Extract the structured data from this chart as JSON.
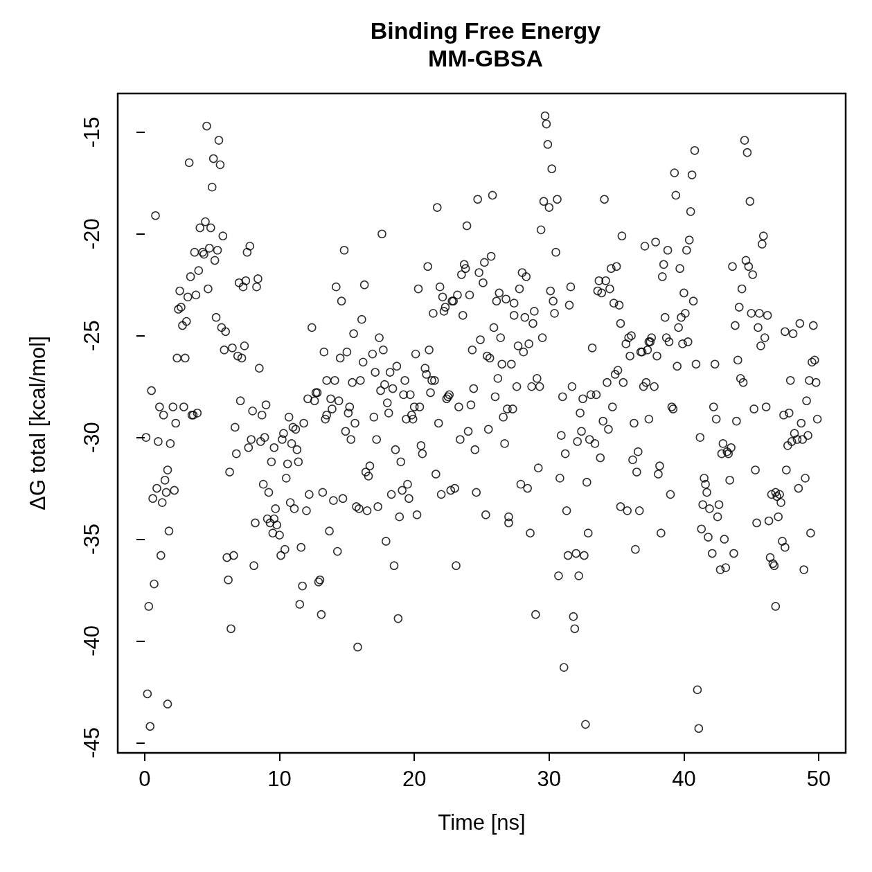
{
  "chart_data": {
    "type": "scatter",
    "title": "Binding Free Energy",
    "subtitle": "MM-GBSA",
    "xlabel": "Time [ns]",
    "ylabel": "ΔG total [kcal/mol]",
    "xlim": [
      -2,
      52
    ],
    "xticks": [
      0,
      10,
      20,
      30,
      40,
      50
    ],
    "ylim": [
      -45.5,
      -13.1
    ],
    "yticks": [
      -45,
      -40,
      -35,
      -30,
      -25,
      -20,
      -15
    ],
    "grid": false,
    "marker": "circle",
    "series": [
      {
        "color": "#000000",
        "x": [
          0.1,
          0.2,
          0.3,
          0.4,
          0.5,
          0.6,
          0.7,
          0.8,
          0.9,
          1.0,
          1.1,
          1.2,
          1.3,
          1.4,
          1.5,
          1.6,
          1.7,
          1.7,
          1.8,
          1.9,
          2.1,
          2.2,
          2.3,
          2.4,
          2.5,
          2.6,
          2.7,
          2.8,
          2.9,
          3.0,
          3.1,
          3.2,
          3.3,
          3.4,
          3.5,
          3.6,
          3.7,
          3.8,
          3.9,
          4.0,
          4.1,
          4.3,
          4.4,
          4.5,
          4.6,
          4.7,
          4.8,
          4.9,
          5.0,
          5.1,
          5.2,
          5.3,
          5.4,
          5.5,
          5.6,
          5.7,
          5.8,
          5.9,
          6.0,
          6.1,
          6.2,
          6.3,
          6.4,
          6.5,
          6.6,
          6.7,
          6.8,
          6.9,
          7.0,
          7.1,
          7.2,
          7.3,
          7.4,
          7.5,
          7.6,
          7.7,
          7.8,
          7.9,
          8.0,
          8.1,
          8.2,
          8.3,
          8.4,
          8.5,
          8.6,
          8.7,
          8.8,
          8.9,
          9.0,
          9.1,
          9.2,
          9.3,
          9.4,
          9.5,
          9.6,
          9.6,
          9.7,
          9.8,
          10.0,
          10.1,
          10.2,
          10.3,
          10.4,
          10.5,
          10.6,
          10.7,
          10.8,
          10.9,
          11.0,
          11.1,
          11.2,
          11.3,
          11.4,
          11.5,
          11.6,
          11.7,
          11.8,
          12.0,
          12.1,
          12.2,
          12.4,
          12.6,
          12.7,
          12.8,
          12.9,
          13.0,
          13.1,
          13.2,
          13.3,
          13.4,
          13.5,
          13.5,
          13.7,
          13.8,
          13.9,
          14.0,
          14.1,
          14.2,
          14.3,
          14.4,
          14.5,
          14.6,
          14.7,
          14.8,
          14.9,
          15.0,
          15.1,
          15.2,
          15.3,
          15.4,
          15.5,
          15.6,
          15.7,
          15.8,
          15.9,
          16.0,
          16.1,
          16.2,
          16.3,
          16.4,
          16.5,
          16.6,
          16.7,
          16.9,
          17.0,
          17.1,
          17.2,
          17.3,
          17.4,
          17.5,
          17.6,
          17.7,
          17.8,
          17.9,
          18.0,
          18.1,
          18.2,
          18.3,
          18.4,
          18.5,
          18.6,
          18.7,
          18.8,
          18.9,
          19.0,
          19.1,
          19.2,
          19.3,
          19.4,
          19.5,
          19.6,
          19.7,
          19.8,
          19.9,
          20.0,
          20.1,
          20.2,
          20.3,
          20.4,
          20.5,
          20.6,
          20.8,
          20.9,
          21.0,
          21.1,
          21.2,
          21.3,
          21.4,
          21.5,
          21.6,
          21.7,
          21.8,
          21.9,
          22.0,
          22.1,
          22.2,
          22.3,
          22.4,
          22.5,
          22.6,
          22.7,
          22.8,
          22.9,
          23.0,
          23.1,
          23.2,
          23.3,
          23.4,
          23.5,
          23.6,
          23.7,
          23.8,
          23.9,
          24.0,
          24.1,
          24.2,
          24.3,
          24.4,
          24.5,
          24.6,
          24.7,
          24.8,
          24.9,
          25.1,
          25.2,
          25.3,
          25.4,
          25.5,
          25.6,
          25.7,
          25.8,
          25.9,
          26.0,
          26.1,
          26.2,
          26.3,
          26.4,
          26.5,
          26.6,
          26.7,
          26.8,
          26.9,
          27.0,
          27.0,
          27.2,
          27.3,
          27.4,
          27.4,
          27.6,
          27.7,
          27.8,
          27.9,
          28.0,
          28.1,
          28.2,
          28.3,
          28.4,
          28.5,
          28.6,
          28.7,
          28.8,
          28.9,
          29.0,
          29.1,
          29.2,
          29.3,
          29.4,
          29.5,
          29.6,
          29.7,
          29.8,
          29.9,
          30.0,
          30.1,
          30.2,
          30.3,
          30.4,
          30.5,
          30.6,
          30.7,
          30.8,
          30.9,
          31.0,
          31.1,
          31.2,
          31.3,
          31.4,
          31.5,
          31.6,
          31.7,
          31.8,
          31.9,
          32.0,
          32.1,
          32.2,
          32.3,
          32.4,
          32.5,
          32.6,
          32.7,
          32.8,
          32.9,
          33.0,
          33.1,
          33.2,
          33.4,
          33.5,
          33.6,
          33.7,
          33.8,
          33.9,
          34.0,
          34.1,
          34.2,
          34.3,
          34.4,
          34.5,
          34.6,
          34.7,
          34.8,
          34.9,
          35.0,
          35.1,
          35.2,
          35.3,
          35.3,
          35.4,
          35.5,
          35.7,
          35.8,
          35.9,
          36.0,
          36.1,
          36.2,
          36.3,
          36.4,
          36.5,
          36.6,
          36.7,
          36.8,
          36.9,
          37.0,
          37.1,
          37.2,
          37.3,
          37.4,
          37.4,
          37.5,
          37.6,
          37.8,
          37.9,
          38.0,
          38.1,
          38.2,
          38.3,
          38.4,
          38.5,
          38.6,
          38.7,
          38.8,
          38.9,
          39.0,
          39.1,
          39.2,
          39.3,
          39.4,
          39.5,
          39.6,
          39.7,
          39.8,
          39.9,
          40.0,
          40.1,
          40.2,
          40.3,
          40.4,
          40.5,
          40.6,
          40.7,
          40.8,
          40.9,
          41.0,
          41.1,
          41.2,
          41.3,
          41.4,
          41.5,
          41.6,
          41.7,
          41.8,
          41.9,
          42.1,
          42.2,
          42.3,
          42.4,
          42.5,
          42.6,
          42.7,
          42.8,
          42.9,
          43.0,
          43.1,
          43.2,
          43.3,
          43.4,
          43.5,
          43.6,
          43.7,
          43.8,
          43.9,
          44.0,
          44.1,
          44.2,
          44.3,
          44.4,
          44.5,
          44.6,
          44.7,
          44.8,
          44.9,
          45.0,
          45.1,
          45.2,
          45.3,
          45.4,
          45.5,
          45.6,
          45.7,
          45.8,
          45.9,
          46.0,
          46.1,
          46.2,
          46.3,
          46.4,
          46.5,
          46.6,
          46.7,
          46.8,
          46.8,
          46.9,
          47.0,
          47.1,
          47.2,
          47.3,
          47.4,
          47.5,
          47.5,
          47.6,
          47.7,
          47.8,
          47.9,
          48.0,
          48.1,
          48.2,
          48.4,
          48.5,
          48.6,
          48.7,
          48.8,
          48.9,
          49.0,
          49.1,
          49.2,
          49.3,
          49.4,
          49.5,
          49.6,
          49.7,
          49.8,
          49.9
        ],
        "values": [
          -30.0,
          -42.6,
          -38.3,
          -44.2,
          -27.7,
          -33.0,
          -37.2,
          -19.1,
          -32.5,
          -30.2,
          -28.5,
          -35.8,
          -33.2,
          -28.9,
          -32.1,
          -32.7,
          -31.6,
          -43.1,
          -34.6,
          -30.3,
          -28.5,
          -32.6,
          -29.3,
          -26.1,
          -23.7,
          -22.8,
          -23.6,
          -24.5,
          -28.5,
          -26.1,
          -24.3,
          -23.1,
          -16.5,
          -22.1,
          -28.9,
          -28.9,
          -20.9,
          -23.0,
          -28.8,
          -21.8,
          -19.7,
          -20.9,
          -21.0,
          -19.4,
          -14.7,
          -22.7,
          -20.7,
          -19.7,
          -17.7,
          -16.3,
          -21.3,
          -24.1,
          -20.8,
          -15.4,
          -16.6,
          -24.6,
          -20.1,
          -25.7,
          -24.8,
          -35.9,
          -37.0,
          -31.7,
          -39.4,
          -25.6,
          -35.8,
          -29.5,
          -30.8,
          -26.0,
          -22.4,
          -28.2,
          -26.1,
          -22.6,
          -25.5,
          -22.3,
          -20.9,
          -30.5,
          -20.6,
          -30.1,
          -28.7,
          -36.3,
          -34.2,
          -22.6,
          -22.2,
          -26.6,
          -30.2,
          -28.9,
          -32.3,
          -30.0,
          -28.4,
          -34.0,
          -32.7,
          -34.2,
          -31.2,
          -34.7,
          -30.5,
          -34.0,
          -33.5,
          -34.3,
          -34.8,
          -35.8,
          -30.1,
          -29.8,
          -35.5,
          -32.0,
          -31.3,
          -29.0,
          -33.2,
          -30.3,
          -29.5,
          -33.5,
          -29.6,
          -30.6,
          -31.2,
          -38.2,
          -35.4,
          -37.3,
          -29.3,
          -33.6,
          -28.1,
          -32.8,
          -24.6,
          -28.2,
          -27.8,
          -27.8,
          -37.1,
          -37.0,
          -38.7,
          -32.7,
          -25.8,
          -29.1,
          -28.9,
          -27.2,
          -34.6,
          -28.1,
          -28.6,
          -33.1,
          -27.2,
          -22.6,
          -35.6,
          -28.2,
          -26.1,
          -23.3,
          -33.0,
          -20.8,
          -29.7,
          -25.8,
          -28.8,
          -28.5,
          -30.1,
          -27.3,
          -24.9,
          -29.3,
          -33.4,
          -40.3,
          -33.5,
          -27.2,
          -24.2,
          -26.3,
          -22.5,
          -31.7,
          -33.6,
          -31.9,
          -31.4,
          -25.9,
          -29.0,
          -26.8,
          -30.1,
          -33.4,
          -25.1,
          -27.7,
          -20.0,
          -25.7,
          -27.4,
          -35.1,
          -28.3,
          -28.8,
          -26.8,
          -32.8,
          -27.6,
          -36.3,
          -30.6,
          -26.5,
          -38.9,
          -33.9,
          -31.2,
          -32.6,
          -27.9,
          -27.2,
          -29.1,
          -32.3,
          -33.0,
          -27.9,
          -28.9,
          -29.1,
          -28.5,
          -25.9,
          -33.8,
          -22.7,
          -28.5,
          -30.4,
          -30.8,
          -26.6,
          -26.9,
          -21.6,
          -25.7,
          -27.8,
          -27.2,
          -23.9,
          -27.2,
          -31.8,
          -18.7,
          -29.3,
          -22.6,
          -32.8,
          -23.1,
          -23.8,
          -23.6,
          -28.1,
          -28.0,
          -27.9,
          -32.6,
          -23.3,
          -23.3,
          -32.5,
          -36.3,
          -23.0,
          -28.5,
          -30.1,
          -22.0,
          -24.0,
          -21.5,
          -21.7,
          -19.6,
          -29.7,
          -23.0,
          -28.4,
          -25.7,
          -27.6,
          -30.6,
          -32.7,
          -18.3,
          -21.9,
          -25.2,
          -22.4,
          -21.4,
          -33.8,
          -26.0,
          -29.6,
          -26.1,
          -21.1,
          -18.1,
          -24.6,
          -28.0,
          -23.3,
          -27.1,
          -22.9,
          -25.1,
          -26.4,
          -29.0,
          -30.3,
          -23.2,
          -28.6,
          -33.9,
          -34.2,
          -26.4,
          -28.6,
          -24.0,
          -23.4,
          -27.5,
          -25.5,
          -22.7,
          -32.3,
          -21.9,
          -25.8,
          -24.1,
          -22.1,
          -32.5,
          -25.4,
          -34.7,
          -27.5,
          -24.4,
          -23.8,
          -38.7,
          -27.1,
          -31.5,
          -27.5,
          -19.8,
          -25.1,
          -18.4,
          -14.2,
          -14.6,
          -15.6,
          -18.7,
          -22.8,
          -16.8,
          -23.3,
          -23.9,
          -20.9,
          -18.3,
          -36.8,
          -32.0,
          -29.9,
          -28.0,
          -41.3,
          -30.8,
          -33.6,
          -35.8,
          -23.5,
          -22.6,
          -27.5,
          -38.8,
          -39.4,
          -35.7,
          -30.2,
          -36.8,
          -28.8,
          -29.7,
          -28.1,
          -35.8,
          -44.1,
          -32.2,
          -34.7,
          -30.1,
          -27.9,
          -25.6,
          -30.3,
          -27.9,
          -22.8,
          -22.3,
          -31.0,
          -22.9,
          -29.2,
          -18.3,
          -22.3,
          -27.3,
          -29.6,
          -22.7,
          -21.7,
          -28.5,
          -23.4,
          -26.9,
          -21.6,
          -26.7,
          -23.5,
          -24.4,
          -33.4,
          -20.1,
          -27.3,
          -25.4,
          -33.6,
          -25.1,
          -26.0,
          -25.0,
          -31.1,
          -29.3,
          -35.5,
          -31.7,
          -30.7,
          -33.6,
          -25.8,
          -25.8,
          -27.5,
          -20.6,
          -27.3,
          -25.7,
          -25.3,
          -29.1,
          -25.3,
          -25.1,
          -27.5,
          -20.4,
          -26.0,
          -31.8,
          -31.4,
          -34.7,
          -22.1,
          -21.5,
          -24.1,
          -25.1,
          -20.8,
          -25.3,
          -32.8,
          -28.5,
          -28.6,
          -17.0,
          -18.1,
          -26.5,
          -24.6,
          -21.7,
          -24.1,
          -25.4,
          -22.9,
          -23.9,
          -20.8,
          -25.3,
          -20.3,
          -18.9,
          -17.1,
          -23.3,
          -15.9,
          -26.4,
          -42.4,
          -44.3,
          -30.0,
          -34.5,
          -33.3,
          -32.0,
          -32.3,
          -32.7,
          -34.9,
          -33.5,
          -35.7,
          -28.5,
          -26.4,
          -29.1,
          -33.9,
          -33.3,
          -36.5,
          -30.8,
          -30.3,
          -35.0,
          -36.4,
          -30.7,
          -30.8,
          -32.1,
          -30.5,
          -21.6,
          -35.7,
          -24.5,
          -29.2,
          -26.2,
          -23.6,
          -27.1,
          -22.7,
          -27.3,
          -15.4,
          -21.3,
          -16.0,
          -21.6,
          -18.4,
          -23.9,
          -22.0,
          -28.6,
          -31.6,
          -34.2,
          -24.6,
          -23.9,
          -25.5,
          -20.5,
          -20.1,
          -25.1,
          -28.5,
          -24.0,
          -34.1,
          -35.9,
          -32.8,
          -36.2,
          -36.3,
          -32.7,
          -38.3,
          -32.9,
          -33.9,
          -32.8,
          -33.2,
          -35.1,
          -28.9,
          -24.8,
          -35.4,
          -31.6,
          -30.4,
          -28.8,
          -27.2,
          -30.2,
          -24.9,
          -29.8,
          -30.1,
          -32.5,
          -24.4,
          -29.3,
          -30.1,
          -36.5,
          -32.0,
          -28.2,
          -29.9,
          -27.2,
          -34.7,
          -26.3,
          -24.5,
          -26.2,
          -27.3,
          -29.1
        ]
      }
    ]
  }
}
